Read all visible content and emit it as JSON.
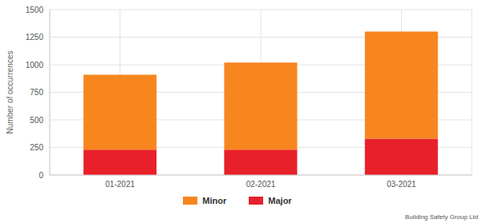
{
  "chart_data": {
    "type": "bar",
    "stacked": true,
    "categories": [
      "01-2021",
      "02-2021",
      "03-2021"
    ],
    "series": [
      {
        "name": "Minor",
        "color": "#f7861f",
        "values": [
          680,
          790,
          970
        ]
      },
      {
        "name": "Major",
        "color": "#e8202a",
        "values": [
          230,
          230,
          330
        ]
      }
    ],
    "ylabel": "Number of occurrences",
    "ylim": [
      0,
      1500
    ],
    "yticks": [
      0,
      250,
      500,
      750,
      1000,
      1250,
      1500
    ],
    "grid": true,
    "legend": "bottom",
    "source": "Building Safety Group Ltd"
  }
}
